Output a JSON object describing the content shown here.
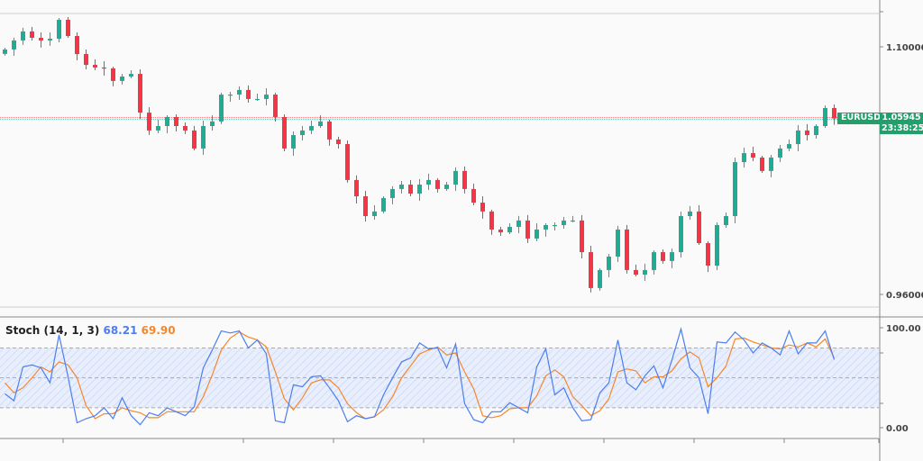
{
  "chart_data": [
    {
      "type": "candlestick",
      "symbol": "EURUSD",
      "last_price": "1.05945",
      "countdown": "23:38:25",
      "y_ticks": [
        "1.10000",
        "0.96000"
      ],
      "y_tick_values": [
        1.1,
        0.96
      ],
      "ylim": [
        0.953,
        1.12
      ],
      "first_open": 1.096,
      "close": [
        1.0985,
        1.1036,
        1.1087,
        1.1051,
        1.1036,
        1.1046,
        1.1153,
        1.1061,
        1.0959,
        1.0898,
        1.0883,
        1.0878,
        1.0807,
        1.0832,
        1.0847,
        1.0628,
        1.0527,
        1.0552,
        1.0603,
        1.0552,
        1.0527,
        1.0425,
        1.0552,
        1.0578,
        1.073,
        1.073,
        1.0756,
        1.0705,
        1.0705,
        1.073,
        1.0603,
        1.0425,
        1.0501,
        1.0527,
        1.0552,
        1.0578,
        1.0476,
        1.045,
        1.0247,
        1.0155,
        1.0043,
        1.0069,
        1.0145,
        1.0196,
        1.0221,
        1.017,
        1.0221,
        1.0247,
        1.0196,
        1.0221,
        1.0298,
        1.0196,
        1.0119,
        1.0069,
        0.9967,
        0.9951,
        0.9982,
        1.0018,
        0.9916,
        0.9967,
        0.9992,
        0.9992,
        1.0018,
        1.0018,
        0.9839,
        0.9636,
        0.9738,
        0.9814,
        0.9967,
        0.9738,
        0.9712,
        0.9738,
        0.9839,
        0.9789,
        0.9839,
        1.0043,
        1.0069,
        0.989,
        0.9763,
        0.9992,
        1.0043,
        1.0348,
        1.0399,
        1.0374,
        1.0298,
        1.0374,
        1.0425,
        1.045,
        1.0527,
        1.0501,
        1.0552,
        1.0654,
        1.0595
      ],
      "colors": {
        "up": "#22ab94",
        "down": "#f23645",
        "tag": "#22a06b"
      },
      "grid": false
    },
    {
      "type": "line",
      "title": "Stoch (14, 1, 3)",
      "k_value": "68.21",
      "d_value": "69.90",
      "y_ticks": [
        "100.00",
        "0.00"
      ],
      "ylim": [
        0,
        100
      ],
      "bands": [
        20,
        50,
        80
      ],
      "series": [
        {
          "key": "k",
          "color": "#4c7ef0",
          "values": [
            34,
            27,
            61,
            63,
            60,
            45,
            93,
            51,
            5,
            9,
            12,
            20,
            9,
            30,
            12,
            3,
            15,
            12,
            20,
            16,
            12,
            21,
            60,
            78,
            97,
            95,
            97,
            80,
            88,
            74,
            7,
            5,
            43,
            41,
            51,
            52,
            40,
            27,
            6,
            12,
            9,
            11,
            33,
            50,
            66,
            70,
            85,
            79,
            80,
            60,
            84,
            24,
            8,
            5,
            16,
            16,
            25,
            20,
            15,
            61,
            79,
            33,
            40,
            20,
            7,
            8,
            35,
            45,
            88,
            45,
            38,
            52,
            62,
            40,
            68,
            99,
            60,
            50,
            14,
            86,
            85,
            96,
            88,
            75,
            85,
            80,
            73,
            97,
            74,
            85,
            85,
            97,
            68.21
          ]
        },
        {
          "key": "d",
          "color": "#f5872a",
          "values": [
            45,
            35,
            40,
            50,
            61,
            56,
            66,
            63,
            50,
            22,
            9,
            14,
            14,
            20,
            17,
            15,
            10,
            10,
            16,
            16,
            16,
            16,
            31,
            53,
            78,
            90,
            96,
            91,
            88,
            81,
            56,
            29,
            18,
            30,
            45,
            48,
            48,
            40,
            24,
            15,
            9,
            11,
            18,
            31,
            50,
            62,
            74,
            78,
            81,
            73,
            75,
            56,
            39,
            12,
            10,
            12,
            19,
            20,
            20,
            32,
            52,
            58,
            51,
            31,
            22,
            12,
            17,
            29,
            56,
            59,
            57,
            45,
            51,
            51,
            57,
            69,
            76,
            70,
            41,
            50,
            62,
            89,
            90,
            86,
            83,
            80,
            79,
            83,
            81,
            85,
            81,
            89,
            69.9
          ]
        }
      ]
    }
  ]
}
